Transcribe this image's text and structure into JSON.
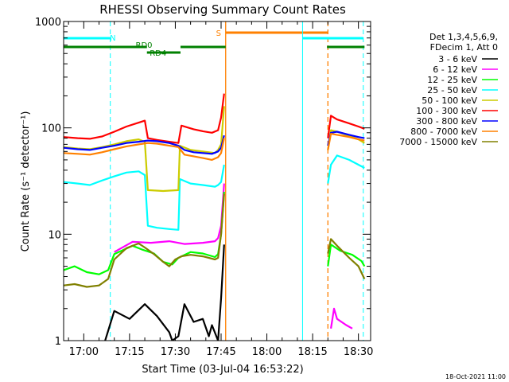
{
  "chart_data": {
    "type": "line",
    "title": "RHESSI Observing Summary Count Rates",
    "xlabel": "Start Time (03-Jul-04 16:53:22)",
    "ylabel": "Count Rate (s⁻¹ detector⁻¹)",
    "yscale": "log",
    "ylim": [
      1,
      1000
    ],
    "xlim_min": [
      53.4,
      154
    ],
    "xticks": [
      {
        "min": 60,
        "label": "17:00"
      },
      {
        "min": 75,
        "label": "17:15"
      },
      {
        "min": 90,
        "label": "17:30"
      },
      {
        "min": 105,
        "label": "17:45"
      },
      {
        "min": 120,
        "label": "18:00"
      },
      {
        "min": 135,
        "label": "18:15"
      },
      {
        "min": 150,
        "label": "18:30"
      }
    ],
    "yticks": [
      {
        "v": 1,
        "label": "1"
      },
      {
        "v": 10,
        "label": "10"
      },
      {
        "v": 100,
        "label": "100"
      },
      {
        "v": 1000,
        "label": "1000"
      }
    ],
    "legend_header": [
      "Det 1,3,4,5,6,9,",
      "FDecim 1, Att 0"
    ],
    "legend_placement": "right",
    "series": [
      {
        "name": "3 - 6 keV",
        "color": "#000000",
        "segments": [
          [
            [
              67,
              1
            ],
            [
              70,
              1.9
            ],
            [
              75,
              1.6
            ],
            [
              80,
              2.2
            ],
            [
              84,
              1.7
            ],
            [
              88,
              1.2
            ],
            [
              89,
              1
            ],
            [
              91,
              1.1
            ],
            [
              93,
              2.2
            ],
            [
              96,
              1.5
            ],
            [
              99,
              1.6
            ],
            [
              101,
              1.1
            ],
            [
              102,
              1.4
            ],
            [
              104,
              1.0
            ],
            [
              105,
              2.5
            ],
            [
              106,
              8
            ]
          ]
        ]
      },
      {
        "name": "6 - 12 keV",
        "color": "#ff00ff",
        "segments": [
          [
            [
              70,
              6.8
            ],
            [
              76,
              8.5
            ],
            [
              82,
              8.3
            ],
            [
              88,
              8.6
            ],
            [
              93,
              8.1
            ],
            [
              99,
              8.3
            ],
            [
              103,
              8.6
            ],
            [
              104,
              9.2
            ],
            [
              105,
              12
            ],
            [
              106,
              30
            ]
          ],
          [
            [
              141,
              1.3
            ],
            [
              142,
              2
            ],
            [
              143,
              1.6
            ],
            [
              146,
              1.4
            ],
            [
              148,
              1.3
            ]
          ]
        ]
      },
      {
        "name": "12 - 25 keV",
        "color": "#00ff00",
        "segments": [
          [
            [
              53.4,
              4.6
            ],
            [
              57,
              5
            ],
            [
              61,
              4.4
            ],
            [
              65,
              4.2
            ],
            [
              68,
              4.6
            ],
            [
              70,
              6.5
            ],
            [
              76,
              7.8
            ],
            [
              79,
              7.2
            ],
            [
              83,
              6.6
            ],
            [
              86,
              5.5
            ],
            [
              89,
              5.2
            ],
            [
              91,
              6
            ],
            [
              95,
              6.8
            ],
            [
              99,
              6.6
            ],
            [
              103,
              6.1
            ],
            [
              104,
              6.5
            ],
            [
              105,
              10
            ],
            [
              106,
              25
            ]
          ],
          [
            [
              140,
              5
            ],
            [
              141,
              8
            ],
            [
              144,
              7
            ],
            [
              148,
              6.4
            ],
            [
              151,
              5.6
            ],
            [
              152,
              5
            ]
          ]
        ]
      },
      {
        "name": "25 - 50 keV",
        "color": "#00ffff",
        "segments": [
          [
            [
              53.4,
              31
            ],
            [
              58,
              30
            ],
            [
              62,
              29
            ],
            [
              66,
              32
            ],
            [
              70,
              35
            ],
            [
              74,
              38
            ],
            [
              78,
              39
            ],
            [
              80,
              36
            ],
            [
              81,
              12
            ],
            [
              84,
              11.5
            ],
            [
              88,
              11.2
            ],
            [
              91,
              11
            ],
            [
              91.5,
              33
            ],
            [
              95,
              30
            ],
            [
              99,
              29
            ],
            [
              103,
              28
            ],
            [
              104,
              29
            ],
            [
              105,
              31
            ],
            [
              106,
              45
            ]
          ],
          [
            [
              140,
              30
            ],
            [
              141,
              45
            ],
            [
              143,
              55
            ],
            [
              147,
              50
            ],
            [
              150,
              45
            ],
            [
              152,
              42
            ]
          ]
        ]
      },
      {
        "name": "50 - 100 keV",
        "color": "#cccc00",
        "segments": [
          [
            [
              53.4,
              66
            ],
            [
              58,
              64
            ],
            [
              62,
              63
            ],
            [
              66,
              66
            ],
            [
              70,
              70
            ],
            [
              74,
              75
            ],
            [
              78,
              78
            ],
            [
              80,
              74
            ],
            [
              81,
              26
            ],
            [
              86,
              25.5
            ],
            [
              91,
              26
            ],
            [
              91.5,
              68
            ],
            [
              95,
              62
            ],
            [
              99,
              60
            ],
            [
              103,
              58
            ],
            [
              104,
              62
            ],
            [
              105,
              70
            ],
            [
              106,
              160
            ]
          ],
          [
            [
              140,
              62
            ],
            [
              141,
              95
            ],
            [
              143,
              92
            ],
            [
              147,
              84
            ],
            [
              150,
              78
            ],
            [
              152,
              72
            ]
          ]
        ]
      },
      {
        "name": "100 - 300 keV",
        "color": "#ff0000",
        "segments": [
          [
            [
              53.4,
              82
            ],
            [
              58,
              80
            ],
            [
              62,
              79
            ],
            [
              66,
              83
            ],
            [
              70,
              92
            ],
            [
              74,
              103
            ],
            [
              78,
              112
            ],
            [
              80,
              117
            ],
            [
              81,
              80
            ],
            [
              84,
              77
            ],
            [
              88,
              74
            ],
            [
              91,
              72
            ],
            [
              92,
              105
            ],
            [
              96,
              97
            ],
            [
              99,
              93
            ],
            [
              102,
              90
            ],
            [
              104,
              95
            ],
            [
              105,
              125
            ],
            [
              106,
              210
            ]
          ],
          [
            [
              140,
              80
            ],
            [
              141,
              130
            ],
            [
              143,
              120
            ],
            [
              147,
              110
            ],
            [
              150,
              103
            ],
            [
              152,
              98
            ]
          ]
        ]
      },
      {
        "name": "300 - 800 keV",
        "color": "#0000ff",
        "segments": [
          [
            [
              53.4,
              65
            ],
            [
              58,
              63
            ],
            [
              62,
              62
            ],
            [
              66,
              65
            ],
            [
              70,
              68
            ],
            [
              74,
              72
            ],
            [
              78,
              74
            ],
            [
              81,
              76
            ],
            [
              84,
              75
            ],
            [
              88,
              72
            ],
            [
              91,
              68
            ],
            [
              93,
              62
            ],
            [
              96,
              59
            ],
            [
              99,
              58
            ],
            [
              102,
              57
            ],
            [
              104,
              60
            ],
            [
              105,
              65
            ],
            [
              106,
              85
            ]
          ],
          [
            [
              140,
              68
            ],
            [
              141,
              90
            ],
            [
              143,
              92
            ],
            [
              147,
              86
            ],
            [
              150,
              82
            ],
            [
              152,
              80
            ]
          ]
        ]
      },
      {
        "name": "800 - 7000 keV",
        "color": "#ff8000",
        "segments": [
          [
            [
              53.4,
              58
            ],
            [
              58,
              57
            ],
            [
              62,
              56
            ],
            [
              66,
              59
            ],
            [
              70,
              63
            ],
            [
              74,
              67
            ],
            [
              78,
              70
            ],
            [
              81,
              72
            ],
            [
              84,
              71
            ],
            [
              88,
              68
            ],
            [
              91,
              66
            ],
            [
              93,
              56
            ],
            [
              96,
              54
            ],
            [
              99,
              52
            ],
            [
              102,
              50
            ],
            [
              104,
              53
            ],
            [
              105,
              58
            ],
            [
              106,
              80
            ]
          ],
          [
            [
              140,
              62
            ],
            [
              141,
              88
            ],
            [
              143,
              86
            ],
            [
              147,
              82
            ],
            [
              150,
              78
            ],
            [
              152,
              76
            ]
          ]
        ]
      },
      {
        "name": "7000 - 15000 keV",
        "color": "#808000",
        "segments": [
          [
            [
              53.4,
              3.3
            ],
            [
              57,
              3.4
            ],
            [
              61,
              3.2
            ],
            [
              65,
              3.3
            ],
            [
              68,
              3.8
            ],
            [
              70,
              5.8
            ],
            [
              74,
              7.4
            ],
            [
              78,
              8.2
            ],
            [
              80,
              7.5
            ],
            [
              83,
              6.5
            ],
            [
              86,
              5.5
            ],
            [
              88,
              5
            ],
            [
              90,
              5.8
            ],
            [
              92,
              6.2
            ],
            [
              95,
              6.4
            ],
            [
              99,
              6.2
            ],
            [
              103,
              5.8
            ],
            [
              104,
              6
            ],
            [
              105,
              10
            ],
            [
              106,
              24
            ]
          ],
          [
            [
              140,
              6.6
            ],
            [
              141,
              9
            ],
            [
              143,
              7.8
            ],
            [
              147,
              6
            ],
            [
              150,
              5
            ],
            [
              152,
              3.8
            ]
          ]
        ]
      }
    ],
    "attenuator_markers": [
      {
        "label": "S",
        "start": 106.5,
        "end": 140,
        "color": "#ff8000"
      }
    ],
    "night_markers": [
      {
        "label": "N",
        "start": 53.4,
        "end": 68.7,
        "color": "#00ffff"
      },
      {
        "label": "",
        "start": 131.7,
        "end": 151.6,
        "color": "#00ffff"
      }
    ],
    "decimation_markers": [
      {
        "label": "RD4",
        "start": 80.7,
        "end": 91.7,
        "color": "#008000"
      },
      {
        "label": "RD0",
        "start": 53.4,
        "end": 80.7,
        "color": "#008000"
      },
      {
        "label": "",
        "start": 91.7,
        "end": 106.5,
        "color": "#008000"
      },
      {
        "label": "",
        "start": 139.7,
        "end": 152,
        "color": "#008000"
      }
    ],
    "grid": false
  },
  "timestamp": "18-Oct-2021 11:00"
}
